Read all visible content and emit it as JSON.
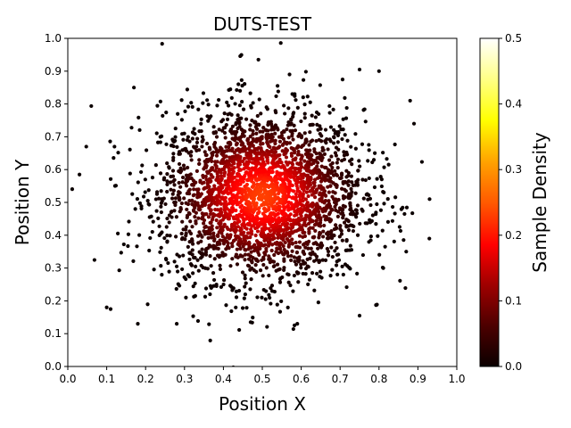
{
  "chart_data": {
    "type": "scatter",
    "title": "DUTS-TEST",
    "xlabel": "Position X",
    "ylabel": "Position Y",
    "xlim": [
      0.0,
      1.0
    ],
    "ylim": [
      0.0,
      1.0
    ],
    "x_ticks": [
      "0.0",
      "0.1",
      "0.2",
      "0.3",
      "0.4",
      "0.5",
      "0.6",
      "0.7",
      "0.8",
      "0.9",
      "1.0"
    ],
    "y_ticks": [
      "0.0",
      "0.1",
      "0.2",
      "0.3",
      "0.4",
      "0.5",
      "0.6",
      "0.7",
      "0.8",
      "0.9",
      "1.0"
    ],
    "grid": false,
    "colorbar": {
      "label": "Sample Density",
      "range": [
        0.0,
        0.5
      ],
      "ticks": [
        "0.0",
        "0.1",
        "0.2",
        "0.3",
        "0.4",
        "0.5"
      ],
      "colormap": "hot"
    },
    "distribution": {
      "center": [
        0.5,
        0.52
      ],
      "spread": [
        0.13,
        0.13
      ],
      "count": 3000,
      "peak_density": 0.23
    },
    "points": [
      {
        "x": 0.03,
        "y": 0.585
      },
      {
        "x": 0.49,
        "y": 0.935
      },
      {
        "x": 0.75,
        "y": 0.905
      },
      {
        "x": 0.8,
        "y": 0.9
      },
      {
        "x": 0.93,
        "y": 0.51
      },
      {
        "x": 0.18,
        "y": 0.13
      },
      {
        "x": 0.1,
        "y": 0.18
      },
      {
        "x": 0.11,
        "y": 0.175
      },
      {
        "x": 0.59,
        "y": 0.13
      },
      {
        "x": 0.47,
        "y": 0.135
      },
      {
        "x": 0.89,
        "y": 0.74
      },
      {
        "x": 0.88,
        "y": 0.81
      },
      {
        "x": 0.57,
        "y": 0.89
      },
      {
        "x": 0.17,
        "y": 0.85
      },
      {
        "x": 0.75,
        "y": 0.155
      },
      {
        "x": 0.12,
        "y": 0.67
      },
      {
        "x": 0.28,
        "y": 0.13
      },
      {
        "x": 0.87,
        "y": 0.35
      }
    ]
  }
}
